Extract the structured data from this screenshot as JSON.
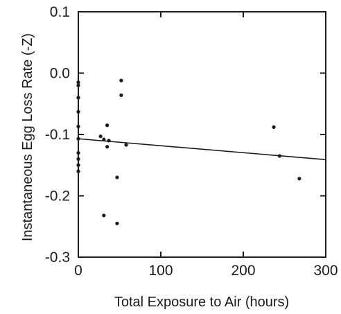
{
  "chart_data": {
    "type": "scatter",
    "title": "",
    "xlabel": "Total Exposure to Air (hours)",
    "ylabel": "Instantaneous Egg Loss Rate (-Z)",
    "xlim": [
      0,
      300
    ],
    "ylim": [
      -0.3,
      0.1
    ],
    "x_ticks": [
      0,
      100,
      200,
      300
    ],
    "x_tick_labels": [
      "0",
      "100",
      "200",
      "300"
    ],
    "y_ticks": [
      -0.3,
      -0.2,
      -0.1,
      0.0,
      0.1
    ],
    "y_tick_labels": [
      "-0.3",
      "-0.2",
      "-0.1",
      "0.0",
      "0.1"
    ],
    "grid": false,
    "legend": "none",
    "points": [
      {
        "x": 0,
        "y": -0.015
      },
      {
        "x": 0,
        "y": -0.02
      },
      {
        "x": 0,
        "y": -0.04
      },
      {
        "x": 0,
        "y": -0.063
      },
      {
        "x": 0,
        "y": -0.087
      },
      {
        "x": 0,
        "y": -0.107
      },
      {
        "x": 0,
        "y": -0.13
      },
      {
        "x": 0,
        "y": -0.14
      },
      {
        "x": 0,
        "y": -0.15
      },
      {
        "x": 0,
        "y": -0.16
      },
      {
        "x": 27,
        "y": -0.103
      },
      {
        "x": 31,
        "y": -0.108
      },
      {
        "x": 35,
        "y": -0.085
      },
      {
        "x": 35,
        "y": -0.12
      },
      {
        "x": 37,
        "y": -0.11
      },
      {
        "x": 31,
        "y": -0.232
      },
      {
        "x": 47,
        "y": -0.17
      },
      {
        "x": 47,
        "y": -0.245
      },
      {
        "x": 52,
        "y": -0.012
      },
      {
        "x": 52,
        "y": -0.036
      },
      {
        "x": 58,
        "y": -0.117
      },
      {
        "x": 237,
        "y": -0.088
      },
      {
        "x": 244,
        "y": -0.135
      },
      {
        "x": 268,
        "y": -0.172
      }
    ],
    "regression_line": {
      "x": [
        0,
        300
      ],
      "y": [
        -0.107,
        -0.141
      ]
    },
    "colors": {
      "ink": "#1a1a1a",
      "background": "#ffffff"
    }
  }
}
